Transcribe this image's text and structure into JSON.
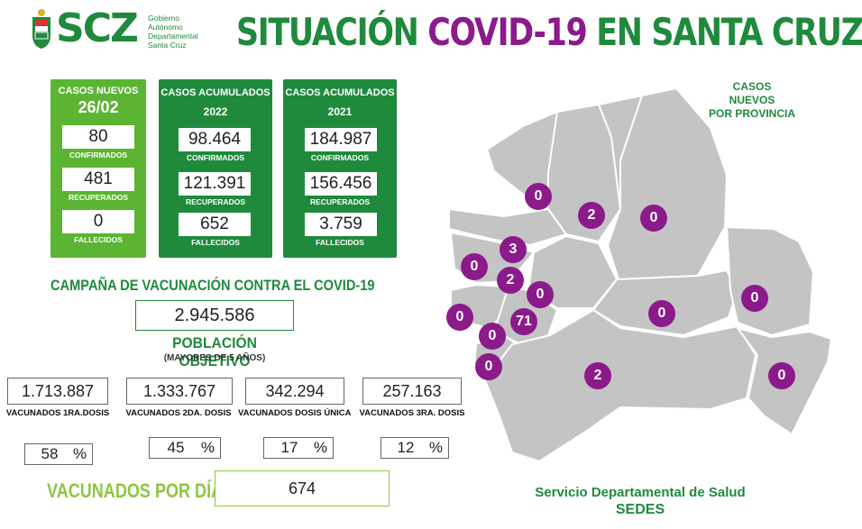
{
  "logo": {
    "mark": "SCZ",
    "subtitle_lines": [
      "Gobierno",
      "Autónomo",
      "Departamental",
      "Santa Cruz"
    ]
  },
  "title": {
    "part1": "SITUACIÓN",
    "part2": "COVID-19",
    "part3": "EN SANTA CRUZ"
  },
  "new_cases": {
    "heading": "CASOS NUEVOS",
    "date": "26/02",
    "confirmed": "80",
    "confirmed_label": "CONFIRMADOS",
    "recovered": "481",
    "recovered_label": "RECUPERADOS",
    "deaths": "0",
    "deaths_label": "FALLECIDOS"
  },
  "acc_2022": {
    "heading": "CASOS ACUMULADOS",
    "year": "2022",
    "confirmed": "98.464",
    "confirmed_label": "CONFIRMADOS",
    "recovered": "121.391",
    "recovered_label": "RECUPERADOS",
    "deaths": "652",
    "deaths_label": "FALLECIDOS"
  },
  "acc_2021": {
    "heading": "CASOS ACUMULADOS",
    "year": "2021",
    "confirmed": "184.987",
    "confirmed_label": "CONFIRMADOS",
    "recovered": "156.456",
    "recovered_label": "RECUPERADOS",
    "deaths": "3.759",
    "deaths_label": "FALLECIDOS"
  },
  "campaign": {
    "title": "CAMPAÑA DE VACUNACIÓN CONTRA EL COVID-19",
    "target_population": "2.945.586",
    "target_label": "POBLACIÓN OBJETIVO",
    "target_sub": "(MAYORES DE 5 AÑOS)",
    "doses": [
      {
        "value": "1.713.887",
        "label": "VACUNADOS 1RA.DOSIS",
        "pct": "58",
        "pct_symbol": "%"
      },
      {
        "value": "1.333.767",
        "label": "VACUNADOS 2DA. DOSIS",
        "pct": "45",
        "pct_symbol": "%"
      },
      {
        "value": "342.294",
        "label": "VACUNADOS DOSIS ÚNICA",
        "pct": "17",
        "pct_symbol": "%"
      },
      {
        "value": "257.163",
        "label": "VACUNADOS 3RA. DOSIS",
        "pct": "12",
        "pct_symbol": "%"
      }
    ],
    "per_day_label": "VACUNADOS POR DÍA",
    "per_day_value": "674"
  },
  "map": {
    "title_line1": "CASOS NUEVOS",
    "title_line2": "POR PROVINCIA",
    "region_color": "#c4c4c4",
    "badge_color": "#8b1a8b",
    "badges": [
      "0",
      "2",
      "0",
      "3",
      "0",
      "2",
      "0",
      "0",
      "71",
      "0",
      "0",
      "0",
      "0",
      "2",
      "0"
    ]
  },
  "footer": {
    "line1": "Servicio Departamental de Salud",
    "line2": "SEDES"
  },
  "colors": {
    "green_dark": "#1f8a3c",
    "green_light": "#5bb432",
    "purple": "#8b1a8b",
    "lime": "#8dc63f"
  }
}
